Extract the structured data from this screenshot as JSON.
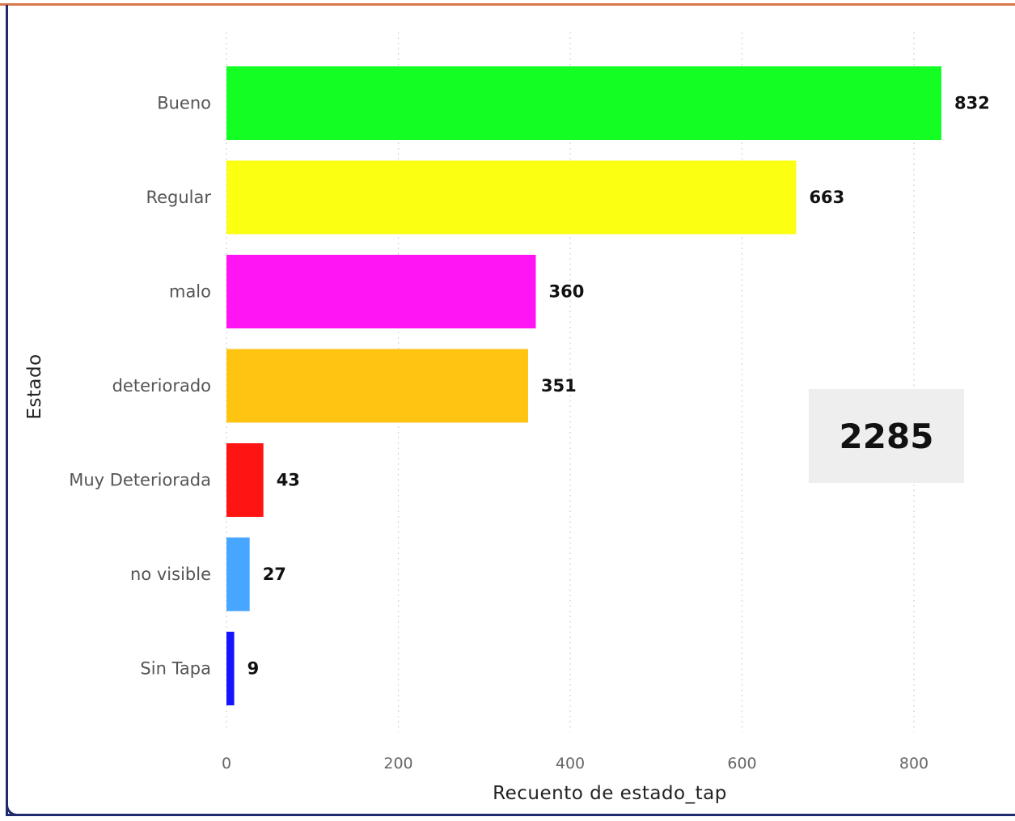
{
  "chart_data": {
    "type": "bar",
    "orientation": "horizontal",
    "categories": [
      "Bueno",
      "Regular",
      "malo",
      "deteriorado",
      "Muy Deteriorada",
      "no visible",
      "Sin Tapa"
    ],
    "values": [
      832,
      663,
      360,
      351,
      43,
      27,
      9
    ],
    "colors": [
      "#13ff24",
      "#fbff12",
      "#ff14f3",
      "#ffc312",
      "#ff1414",
      "#47a6ff",
      "#1414ff"
    ],
    "xlabel": "Recuento de estado_tap",
    "ylabel": "Estado",
    "xlim": [
      0,
      850
    ],
    "xticks": [
      0,
      200,
      400,
      600,
      800
    ],
    "grid": true
  },
  "card": {
    "total": "2285"
  },
  "frame": {
    "accent_top": "#d9774b",
    "border": "#1f2b6e"
  }
}
